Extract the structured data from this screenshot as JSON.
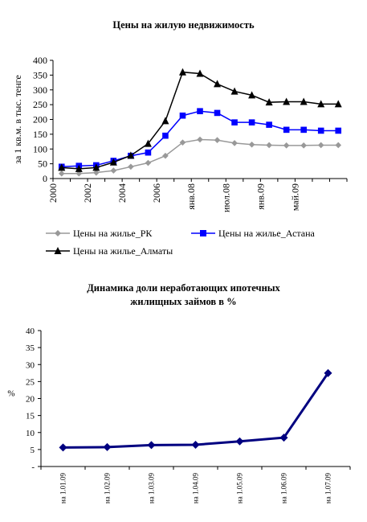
{
  "chart_data": [
    {
      "type": "line",
      "title": "Цены на жилую недвижимость",
      "ylabel": "за 1 кв.м. в тыс. тенге",
      "xlabel": "",
      "ylim": [
        0,
        400
      ],
      "yticks": [
        "0",
        "50",
        "100",
        "150",
        "200",
        "250",
        "300",
        "350",
        "400"
      ],
      "categories": [
        "2000",
        "2001",
        "2002",
        "2003",
        "2004",
        "2005",
        "2006",
        "2007",
        "янв.08",
        "2008-04",
        "июл.08",
        "2008-10",
        "янв.09",
        "2009-03",
        "май.09",
        "2009-07",
        "2009-09"
      ],
      "xtick_labels": [
        "2000",
        "2002",
        "2004",
        "2006",
        "янв.08",
        "июл.08",
        "янв.09",
        "май.09"
      ],
      "series": [
        {
          "name": "Цены на жилье_РК",
          "color": "#999999",
          "marker": "diamond",
          "values": [
            17,
            17,
            20,
            27,
            40,
            53,
            77,
            122,
            132,
            130,
            120,
            115,
            113,
            112,
            112,
            113,
            113
          ]
        },
        {
          "name": "Цены на жилье_Астана",
          "color": "#0000ff",
          "marker": "square",
          "values": [
            40,
            43,
            45,
            60,
            77,
            88,
            145,
            213,
            228,
            222,
            190,
            190,
            182,
            165,
            165,
            162,
            162
          ]
        },
        {
          "name": "Цены на жилье_Алматы",
          "color": "#000000",
          "marker": "triangle",
          "values": [
            37,
            33,
            37,
            55,
            78,
            118,
            195,
            360,
            355,
            320,
            295,
            282,
            258,
            260,
            260,
            252,
            252
          ]
        }
      ],
      "legend_position": "bottom",
      "grid": false
    },
    {
      "type": "line",
      "title": "Динамика доли неработающих ипотечных жилищных займов в %",
      "title_lines": [
        "Динамика доли неработающих ипотечных",
        "жилищных займов в %"
      ],
      "ylabel": "%",
      "xlabel": "",
      "ylim": [
        0,
        40
      ],
      "yticks": [
        "-",
        "5",
        "10",
        "15",
        "20",
        "25",
        "30",
        "35",
        "40"
      ],
      "categories": [
        "на 1.01.09",
        "на 1.02.09",
        "на 1.03.09",
        "на 1.04.09",
        "на 1.05.09",
        "на 1.06.09",
        "на 1.07.09"
      ],
      "series": [
        {
          "color": "#000080",
          "marker": "diamond",
          "values": [
            5.6,
            5.7,
            6.3,
            6.4,
            7.4,
            8.5,
            27.5
          ]
        }
      ],
      "grid": false
    }
  ]
}
